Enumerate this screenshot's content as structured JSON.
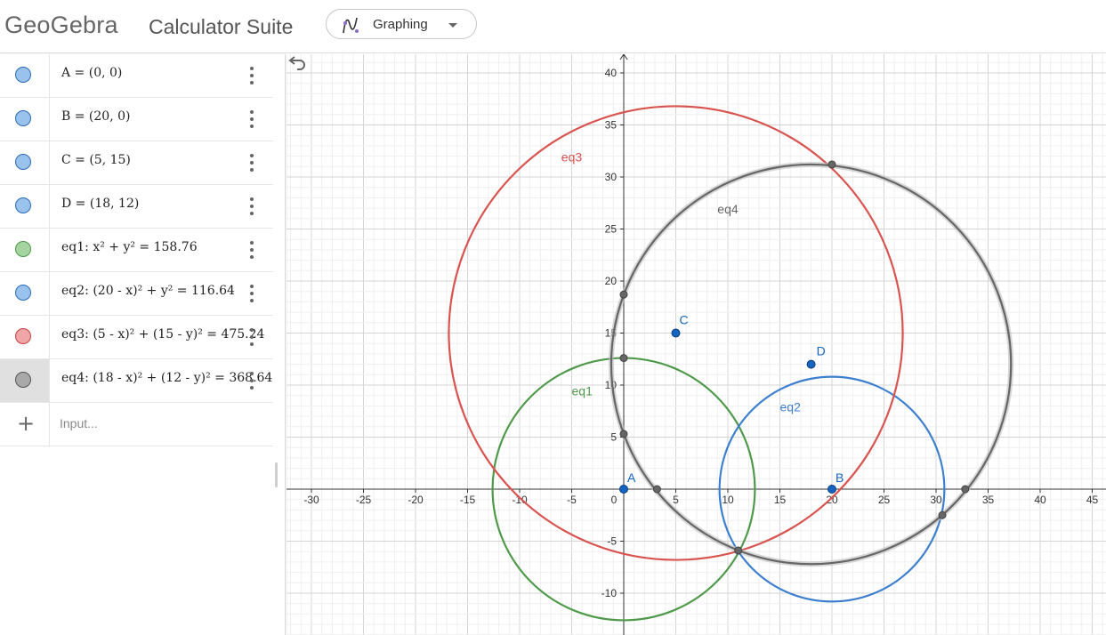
{
  "header": {
    "logo_text": "GeoGebra",
    "suite_title": "Calculator Suite",
    "app_picker": {
      "label": "Graphing",
      "icon": "graphing-icon"
    }
  },
  "algebra": {
    "rows": [
      {
        "name": "A",
        "text": "A = (0, 0)",
        "color": "#99c2ec",
        "border": "#2c6cb6"
      },
      {
        "name": "B",
        "text": "B = (20, 0)",
        "color": "#99c2ec",
        "border": "#2c6cb6"
      },
      {
        "name": "C",
        "text": "C = (5, 15)",
        "color": "#99c2ec",
        "border": "#2c6cb6"
      },
      {
        "name": "D",
        "text": "D = (18, 12)",
        "color": "#99c2ec",
        "border": "#2c6cb6"
      },
      {
        "name": "eq1",
        "text": "eq1: x² + y² = 158.76",
        "color": "#a6d4a1",
        "border": "#4c9a45"
      },
      {
        "name": "eq2",
        "text": "eq2: (20 - x)² + y² = 116.64",
        "color": "#99c2ec",
        "border": "#2c6cb6"
      },
      {
        "name": "eq3",
        "text": "eq3: (5 - x)² + (15 - y)² = 475.24",
        "color": "#f0a6a6",
        "border": "#c94040"
      },
      {
        "name": "eq4",
        "text": "eq4: (18 - x)² + (12 - y)² = 368.64",
        "color": "#a9a9a9",
        "border": "#555555"
      }
    ],
    "input_placeholder": "Input...",
    "add_icon": "plus-icon",
    "menu_icon": "kebab-icon"
  },
  "graphics": {
    "undo_icon": "undo-icon",
    "x_ticks": [
      "-30",
      "-25",
      "-20",
      "-15",
      "-10",
      "-5",
      "0",
      "5",
      "10",
      "15",
      "20",
      "25",
      "30",
      "35",
      "40",
      "45"
    ],
    "y_ticks": [
      "-10",
      "-5",
      "5",
      "10",
      "15",
      "20",
      "25",
      "30",
      "35",
      "40"
    ],
    "points": [
      {
        "label": "A",
        "x": 0,
        "y": 0,
        "color": "#1565c0"
      },
      {
        "label": "B",
        "x": 20,
        "y": 0,
        "color": "#1565c0"
      },
      {
        "label": "C",
        "x": 5,
        "y": 15,
        "color": "#1565c0"
      },
      {
        "label": "D",
        "x": 18,
        "y": 12,
        "color": "#1565c0"
      }
    ],
    "circles": [
      {
        "label": "eq1",
        "cx": 0,
        "cy": 0,
        "r2": 158.76,
        "color": "#4f9a4a"
      },
      {
        "label": "eq2",
        "cx": 20,
        "cy": 0,
        "r2": 116.64,
        "color": "#3d7fcf"
      },
      {
        "label": "eq3",
        "cx": 5,
        "cy": 15,
        "r2": 475.24,
        "color": "#d9534f"
      },
      {
        "label": "eq4",
        "cx": 18,
        "cy": 12,
        "r2": 368.64,
        "color": "#666666"
      }
    ],
    "intersections": [
      {
        "x": 20,
        "y": 31.2
      },
      {
        "x": 0,
        "y": 18.7
      },
      {
        "x": 0,
        "y": 12.6
      },
      {
        "x": 0,
        "y": 5.3
      },
      {
        "x": 3.2,
        "y": 0
      },
      {
        "x": 32.8,
        "y": 0
      },
      {
        "x": 30.6,
        "y": -2.5
      },
      {
        "x": 11,
        "y": -5.9
      }
    ]
  }
}
